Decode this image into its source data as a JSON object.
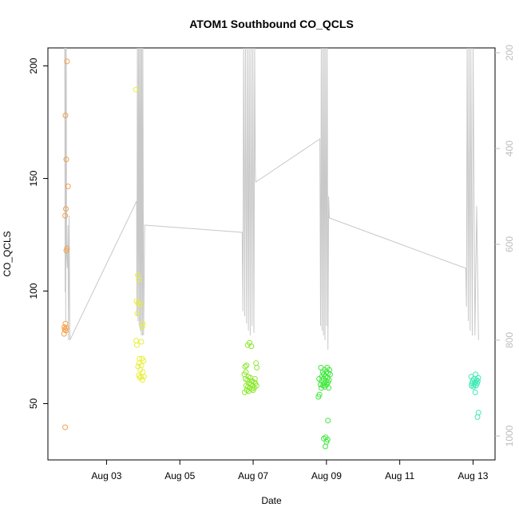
{
  "chart_data": {
    "type": "scatter",
    "title": "ATOM1 Southbound CO_QCLS",
    "xlabel": "Date",
    "ylabel": "CO_QCLS",
    "xlim": [
      1.4,
      13.6
    ],
    "ylim": [
      25,
      208
    ],
    "x_ticks": [
      3,
      5,
      7,
      9,
      11,
      13
    ],
    "x_tick_labels": [
      "Aug 03",
      "Aug 05",
      "Aug 07",
      "Aug 09",
      "Aug 11",
      "Aug 13"
    ],
    "y_ticks": [
      50,
      100,
      150,
      200
    ],
    "y_tick_labels": [
      "50",
      "100",
      "150",
      "200"
    ],
    "y2_lim": [
      1050,
      190
    ],
    "y2_ticks": [
      200,
      400,
      600,
      800,
      1000
    ],
    "y2_tick_labels": [
      "200",
      "400",
      "600",
      "800",
      "1000"
    ],
    "grid": false,
    "series": [
      {
        "color": "#f5a04a",
        "points": [
          [
            1.92,
            202
          ],
          [
            1.88,
            178
          ],
          [
            1.9,
            158.5
          ],
          [
            1.95,
            146.5
          ],
          [
            1.89,
            136.5
          ],
          [
            1.87,
            133.5
          ],
          [
            1.92,
            119
          ],
          [
            1.9,
            118
          ],
          [
            1.88,
            85.5
          ],
          [
            1.85,
            84
          ],
          [
            1.9,
            83.5
          ],
          [
            1.86,
            83
          ],
          [
            1.89,
            82.5
          ],
          [
            1.84,
            81
          ],
          [
            1.87,
            39.5
          ]
        ]
      },
      {
        "color": "#e8ef3a",
        "points": [
          [
            3.8,
            189.5
          ],
          [
            3.85,
            107
          ],
          [
            3.88,
            105
          ],
          [
            3.82,
            95.5
          ],
          [
            3.86,
            94.5
          ],
          [
            3.93,
            94
          ],
          [
            3.84,
            90
          ],
          [
            3.99,
            85.5
          ],
          [
            3.97,
            84
          ],
          [
            3.81,
            78
          ],
          [
            3.95,
            77.5
          ],
          [
            3.83,
            76
          ],
          [
            3.9,
            70
          ],
          [
            3.97,
            70
          ],
          [
            4.01,
            69
          ],
          [
            3.89,
            68
          ],
          [
            3.95,
            67
          ],
          [
            3.86,
            66.5
          ],
          [
            3.92,
            65
          ],
          [
            3.99,
            64
          ],
          [
            3.88,
            62.5
          ],
          [
            3.94,
            62
          ],
          [
            4.02,
            62
          ],
          [
            3.91,
            61.5
          ],
          [
            3.98,
            60.5
          ]
        ]
      },
      {
        "color": "#8de830",
        "points": [
          [
            6.9,
            77
          ],
          [
            6.85,
            76
          ],
          [
            6.95,
            75.5
          ],
          [
            7.08,
            68
          ],
          [
            6.82,
            67
          ],
          [
            6.78,
            66.5
          ],
          [
            7.1,
            66
          ],
          [
            6.8,
            64
          ],
          [
            6.76,
            63
          ],
          [
            6.87,
            62
          ],
          [
            6.92,
            61.5
          ],
          [
            6.79,
            61
          ],
          [
            7.05,
            61
          ],
          [
            6.84,
            60.5
          ],
          [
            6.97,
            60
          ],
          [
            7.02,
            59.5
          ],
          [
            6.89,
            59
          ],
          [
            7.06,
            59
          ],
          [
            6.94,
            58.5
          ],
          [
            6.81,
            58
          ],
          [
            6.99,
            58
          ],
          [
            7.09,
            58
          ],
          [
            6.86,
            57.5
          ],
          [
            6.91,
            57
          ],
          [
            7.03,
            57
          ],
          [
            6.96,
            56.5
          ],
          [
            6.83,
            56
          ],
          [
            7.0,
            56
          ],
          [
            6.88,
            55.5
          ],
          [
            6.77,
            55
          ]
        ]
      },
      {
        "color": "#3de83a",
        "points": [
          [
            8.85,
            66
          ],
          [
            9.02,
            66
          ],
          [
            8.95,
            65
          ],
          [
            9.08,
            65
          ],
          [
            8.9,
            64
          ],
          [
            9.0,
            64
          ],
          [
            9.05,
            63.5
          ],
          [
            8.93,
            63
          ],
          [
            9.1,
            63
          ],
          [
            8.88,
            62
          ],
          [
            8.97,
            62
          ],
          [
            9.03,
            61.5
          ],
          [
            8.8,
            61
          ],
          [
            8.92,
            61
          ],
          [
            9.07,
            60.5
          ],
          [
            8.87,
            60
          ],
          [
            8.99,
            60
          ],
          [
            9.04,
            59.5
          ],
          [
            8.94,
            59
          ],
          [
            8.84,
            58.5
          ],
          [
            9.01,
            58.5
          ],
          [
            8.91,
            58
          ],
          [
            8.96,
            57.5
          ],
          [
            8.86,
            57
          ],
          [
            9.06,
            57
          ],
          [
            8.81,
            54
          ],
          [
            8.78,
            53
          ],
          [
            9.04,
            42.5
          ],
          [
            8.98,
            35
          ],
          [
            8.93,
            34.5
          ],
          [
            9.03,
            34
          ],
          [
            9.0,
            33
          ],
          [
            8.97,
            31
          ]
        ]
      },
      {
        "color": "#3ee8b5",
        "points": [
          [
            13.07,
            63
          ],
          [
            12.95,
            62
          ],
          [
            13.14,
            61.5
          ],
          [
            13.02,
            61
          ],
          [
            13.1,
            60.5
          ],
          [
            12.99,
            60
          ],
          [
            13.13,
            60
          ],
          [
            13.05,
            59.5
          ],
          [
            12.97,
            59
          ],
          [
            13.11,
            59
          ],
          [
            13.03,
            58.5
          ],
          [
            13.08,
            58
          ],
          [
            12.96,
            58
          ],
          [
            13.01,
            57.5
          ],
          [
            13.06,
            55
          ],
          [
            13.15,
            46
          ],
          [
            13.12,
            44
          ]
        ]
      }
    ],
    "overlay_series": {
      "axis": "right",
      "color": "#c8c8c8",
      "points": [
        [
          1.86,
          190
        ],
        [
          1.87,
          700
        ],
        [
          1.875,
          190
        ],
        [
          1.885,
          760
        ],
        [
          1.9,
          190
        ],
        [
          1.91,
          620
        ],
        [
          1.93,
          650
        ],
        [
          1.95,
          560
        ],
        [
          1.96,
          800
        ],
        [
          1.98,
          540
        ],
        [
          2.0,
          800
        ],
        [
          3.82,
          510
        ],
        [
          3.83,
          750
        ],
        [
          3.84,
          190
        ],
        [
          3.86,
          760
        ],
        [
          3.87,
          190
        ],
        [
          3.89,
          770
        ],
        [
          3.9,
          190
        ],
        [
          3.92,
          780
        ],
        [
          3.93,
          190
        ],
        [
          3.95,
          790
        ],
        [
          3.96,
          190
        ],
        [
          3.98,
          790
        ],
        [
          3.99,
          190
        ],
        [
          4.01,
          790
        ],
        [
          4.02,
          720
        ],
        [
          4.04,
          560
        ],
        [
          4.06,
          560
        ],
        [
          6.7,
          575
        ],
        [
          6.72,
          740
        ],
        [
          6.74,
          190
        ],
        [
          6.77,
          750
        ],
        [
          6.79,
          190
        ],
        [
          6.82,
          765
        ],
        [
          6.84,
          190
        ],
        [
          6.87,
          780
        ],
        [
          6.89,
          190
        ],
        [
          6.92,
          790
        ],
        [
          6.94,
          190
        ],
        [
          6.97,
          770
        ],
        [
          6.99,
          190
        ],
        [
          7.02,
          785
        ],
        [
          7.04,
          190
        ],
        [
          7.06,
          450
        ],
        [
          7.07,
          470
        ],
        [
          8.82,
          380
        ],
        [
          8.84,
          770
        ],
        [
          8.86,
          190
        ],
        [
          8.88,
          780
        ],
        [
          8.9,
          190
        ],
        [
          8.92,
          790
        ],
        [
          8.94,
          190
        ],
        [
          8.96,
          800
        ],
        [
          8.98,
          190
        ],
        [
          9.0,
          770
        ],
        [
          9.02,
          190
        ],
        [
          9.04,
          820
        ],
        [
          9.06,
          500
        ],
        [
          9.08,
          545
        ],
        [
          12.8,
          650
        ],
        [
          12.82,
          730
        ],
        [
          12.84,
          190
        ],
        [
          12.87,
          760
        ],
        [
          12.89,
          190
        ],
        [
          12.92,
          780
        ],
        [
          12.94,
          190
        ],
        [
          12.98,
          790
        ],
        [
          13.0,
          190
        ],
        [
          13.05,
          790
        ],
        [
          13.1,
          520
        ],
        [
          13.15,
          800
        ]
      ]
    }
  }
}
